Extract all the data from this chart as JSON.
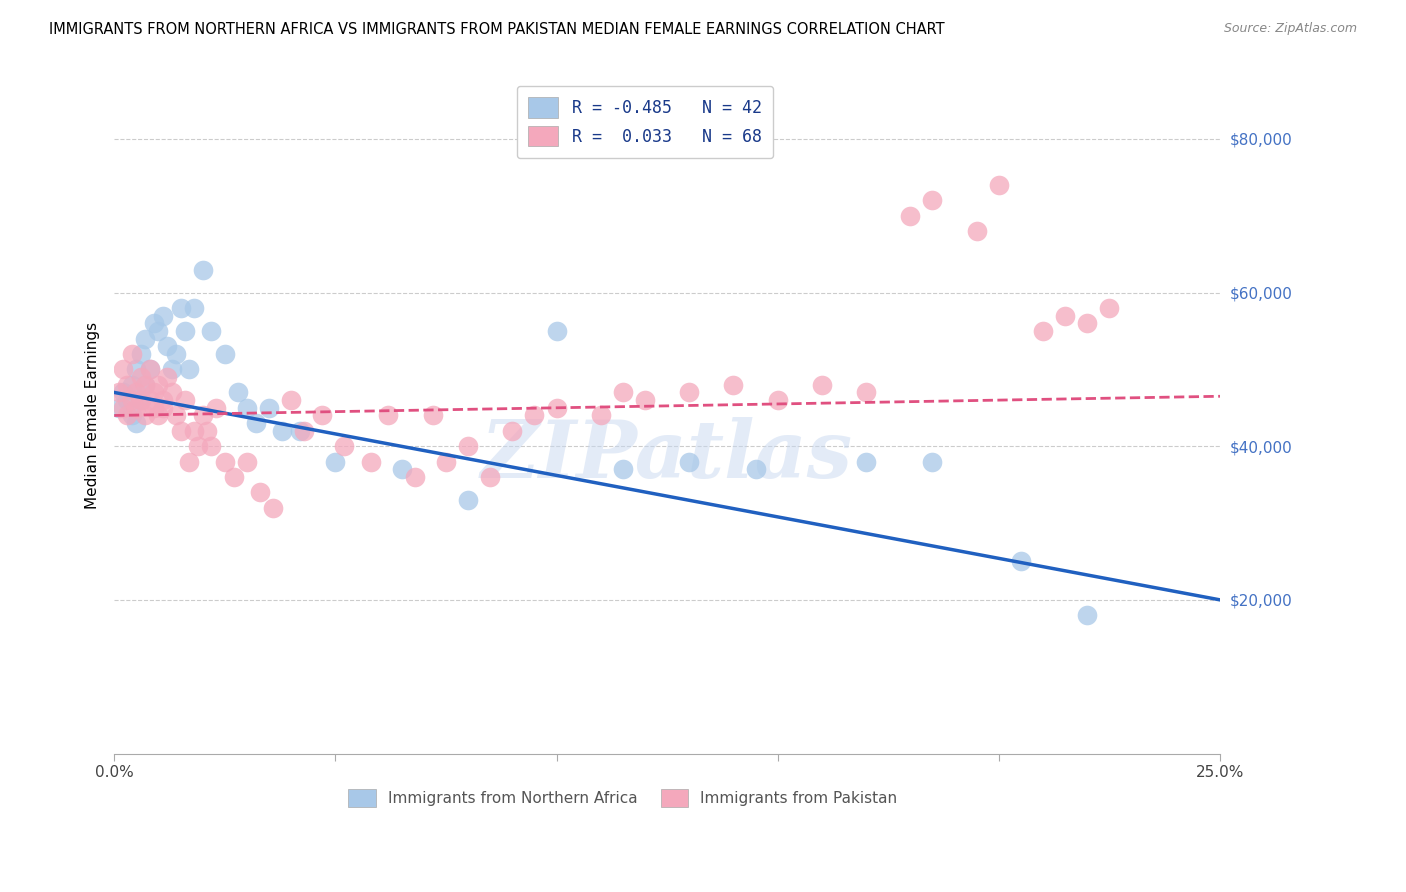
{
  "title": "IMMIGRANTS FROM NORTHERN AFRICA VS IMMIGRANTS FROM PAKISTAN MEDIAN FEMALE EARNINGS CORRELATION CHART",
  "source": "Source: ZipAtlas.com",
  "ylabel": "Median Female Earnings",
  "y_ticks": [
    20000,
    40000,
    60000,
    80000
  ],
  "y_tick_labels": [
    "$20,000",
    "$40,000",
    "$60,000",
    "$80,000"
  ],
  "x_range": [
    0.0,
    0.25
  ],
  "y_range": [
    0,
    88000
  ],
  "watermark": "ZIPatlas",
  "legend_r1": "R = -0.485",
  "legend_n1": "N = 42",
  "legend_r2": "R =  0.033",
  "legend_n2": "N = 68",
  "blue_color": "#a8c8e8",
  "pink_color": "#f4a8bc",
  "line_blue": "#2060c0",
  "line_pink": "#e05080",
  "blue_scatter_x": [
    0.001,
    0.002,
    0.003,
    0.004,
    0.004,
    0.005,
    0.005,
    0.006,
    0.006,
    0.007,
    0.007,
    0.008,
    0.009,
    0.01,
    0.011,
    0.012,
    0.013,
    0.014,
    0.015,
    0.016,
    0.017,
    0.018,
    0.02,
    0.022,
    0.025,
    0.028,
    0.03,
    0.032,
    0.035,
    0.038,
    0.042,
    0.05,
    0.065,
    0.08,
    0.1,
    0.115,
    0.13,
    0.145,
    0.17,
    0.185,
    0.205,
    0.22
  ],
  "blue_scatter_y": [
    45000,
    47000,
    46000,
    44000,
    48000,
    50000,
    43000,
    52000,
    46000,
    54000,
    48000,
    50000,
    56000,
    55000,
    57000,
    53000,
    50000,
    52000,
    58000,
    55000,
    50000,
    58000,
    63000,
    55000,
    52000,
    47000,
    45000,
    43000,
    45000,
    42000,
    42000,
    38000,
    37000,
    33000,
    55000,
    37000,
    38000,
    37000,
    38000,
    38000,
    25000,
    18000
  ],
  "pink_scatter_x": [
    0.001,
    0.002,
    0.002,
    0.003,
    0.003,
    0.004,
    0.004,
    0.005,
    0.005,
    0.006,
    0.006,
    0.007,
    0.007,
    0.008,
    0.008,
    0.009,
    0.009,
    0.01,
    0.01,
    0.011,
    0.011,
    0.012,
    0.013,
    0.014,
    0.015,
    0.016,
    0.017,
    0.018,
    0.019,
    0.02,
    0.021,
    0.022,
    0.023,
    0.025,
    0.027,
    0.03,
    0.033,
    0.036,
    0.04,
    0.043,
    0.047,
    0.052,
    0.058,
    0.062,
    0.068,
    0.072,
    0.075,
    0.08,
    0.085,
    0.09,
    0.095,
    0.1,
    0.11,
    0.115,
    0.12,
    0.13,
    0.14,
    0.15,
    0.16,
    0.17,
    0.18,
    0.185,
    0.195,
    0.2,
    0.21,
    0.215,
    0.22,
    0.225
  ],
  "pink_scatter_y": [
    47000,
    50000,
    45000,
    48000,
    44000,
    46000,
    52000,
    47000,
    45000,
    46000,
    49000,
    48000,
    44000,
    46000,
    50000,
    47000,
    45000,
    48000,
    44000,
    46000,
    45000,
    49000,
    47000,
    44000,
    42000,
    46000,
    38000,
    42000,
    40000,
    44000,
    42000,
    40000,
    45000,
    38000,
    36000,
    38000,
    34000,
    32000,
    46000,
    42000,
    44000,
    40000,
    38000,
    44000,
    36000,
    44000,
    38000,
    40000,
    36000,
    42000,
    44000,
    45000,
    44000,
    47000,
    46000,
    47000,
    48000,
    46000,
    48000,
    47000,
    70000,
    72000,
    68000,
    74000,
    55000,
    57000,
    56000,
    58000
  ],
  "blue_line_x": [
    0.0,
    0.25
  ],
  "blue_line_y": [
    47000,
    20000
  ],
  "pink_line_x": [
    0.0,
    0.25
  ],
  "pink_line_y": [
    44000,
    46500
  ]
}
